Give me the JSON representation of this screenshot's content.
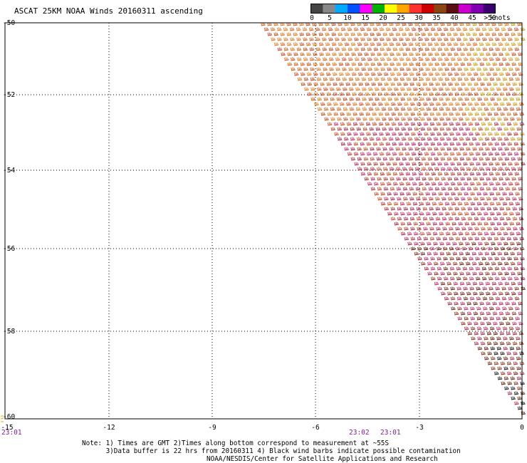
{
  "title": "ASCAT 25KM NOAA Winds 20160311 ascending",
  "colorbar": {
    "colors": [
      "#444444",
      "#888888",
      "#00a9ff",
      "#0050ff",
      "#ff00ff",
      "#00b000",
      "#ffff00",
      "#ffa500",
      "#ff3030",
      "#cc0000",
      "#8b4513",
      "#5a0e0e",
      "#cc00cc",
      "#8000b0",
      "#3a0070"
    ],
    "ticks": [
      "0",
      "5",
      "10",
      "15",
      "20",
      "25",
      "30",
      "35",
      "40",
      "45",
      ">50"
    ],
    "units": "knots"
  },
  "axes": {
    "lat_labels": [
      "-50",
      "-52",
      "-54",
      "-56",
      "-58",
      "-60"
    ],
    "lon_labels": [
      "-15",
      "-12",
      "-9",
      "-6",
      "-3",
      "0"
    ],
    "lon_range": [
      -15,
      0
    ],
    "lat_range": [
      -50,
      -60
    ],
    "grid": true
  },
  "times": [
    "23:01",
    "23:02",
    "23:01"
  ],
  "notes": {
    "line1": "Note: 1) Times are GMT 2)Times along bottom correspond to measurement at ~55S",
    "line2": "      3)Data buffer is 22 hrs from 20160311 4) Black wind barbs indicate possible contamination",
    "line3": "NOAA/NESDIS/Center for Satellite Applications and Research"
  },
  "swath_palette": [
    "#e07a1f",
    "#d9641f",
    "#c8502a",
    "#b83a3a",
    "#c0306a",
    "#a83050",
    "#8b3a22",
    "#6b2a16",
    "#c8a018",
    "#ff00ff",
    "#222222",
    "#cc2020"
  ]
}
